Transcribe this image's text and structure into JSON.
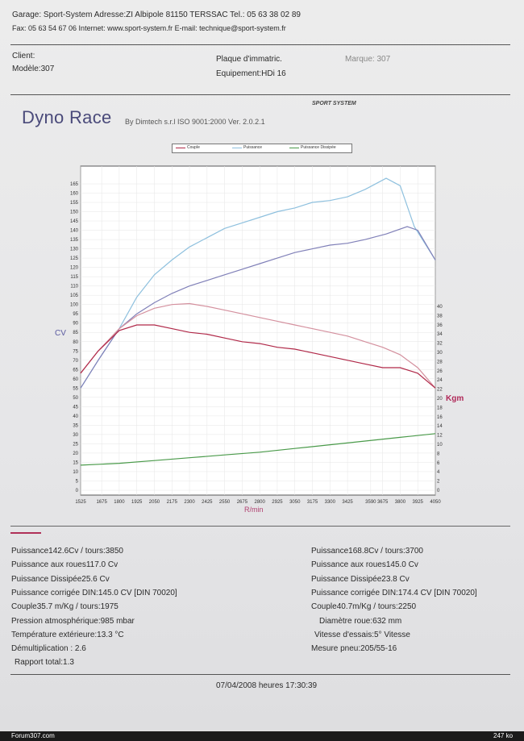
{
  "header": {
    "line1": "Garage: Sport-System   Adresse:ZI Albipole 81150 TERSSAC   Tel.: 05 63 38 02 89",
    "line2": "Fax: 05 63 54 67 06   Internet: www.sport-system.fr   E-mail: technique@sport-system.fr"
  },
  "client": {
    "client_label": "Client:",
    "modele": "Modèle:307",
    "plaque": "Plaque d'immatric.",
    "marque": "Marque: 307",
    "equipement": "Equipement:HDi 16"
  },
  "brand": {
    "title": "Dyno Race",
    "subtitle": "By Dimtech s.r.l  ISO 9001:2000  Ver. 2.0.2.1",
    "logo": "SPORT SYSTEM"
  },
  "chart_data": {
    "type": "line",
    "xlabel": "R/min",
    "ylabel_left": "CV",
    "ylabel_right": "Kgm",
    "x_ticks": [
      1525,
      1675,
      1800,
      1925,
      2050,
      2175,
      2300,
      2425,
      2550,
      2675,
      2800,
      2925,
      3050,
      3175,
      3300,
      3425,
      3590,
      3675,
      3800,
      3925,
      4050
    ],
    "xlim": [
      1525,
      4050
    ],
    "ylim_left": [
      0,
      165
    ],
    "y_left_ticks": [
      0,
      5,
      10,
      15,
      20,
      25,
      30,
      35,
      40,
      45,
      50,
      55,
      60,
      65,
      70,
      75,
      80,
      85,
      90,
      95,
      100,
      105,
      110,
      115,
      120,
      125,
      130,
      135,
      140,
      145,
      150,
      155,
      160,
      165
    ],
    "ylim_right": [
      0,
      40
    ],
    "y_right_ticks": [
      0,
      2,
      4,
      6,
      8,
      10,
      12,
      14,
      16,
      18,
      20,
      22,
      24,
      26,
      28,
      30,
      32,
      34,
      36,
      38,
      40
    ],
    "legend": [
      "Couple",
      "Puissance",
      "Puissance Dissipée"
    ],
    "series": [
      {
        "name": "Puissance",
        "run": 2,
        "axis": "left",
        "color": "#8ec0de",
        "x": [
          1525,
          1650,
          1800,
          1925,
          2050,
          2175,
          2300,
          2425,
          2550,
          2675,
          2800,
          2925,
          3050,
          3175,
          3300,
          3425,
          3550,
          3650,
          3700,
          3800,
          3900,
          4050
        ],
        "y": [
          55,
          70,
          87,
          104,
          116,
          124,
          131,
          136,
          141,
          144,
          147,
          150,
          152,
          155,
          156,
          158,
          162,
          166,
          168,
          164,
          142,
          124
        ]
      },
      {
        "name": "Puissance",
        "run": 1,
        "axis": "left",
        "color": "#8080b8",
        "x": [
          1525,
          1650,
          1800,
          1925,
          2050,
          2175,
          2300,
          2425,
          2550,
          2675,
          2800,
          2925,
          3050,
          3175,
          3300,
          3425,
          3550,
          3700,
          3850,
          3925,
          4050
        ],
        "y": [
          55,
          70,
          87,
          95,
          101,
          106,
          110,
          113,
          116,
          119,
          122,
          125,
          128,
          130,
          132,
          133,
          135,
          138,
          142,
          140,
          124
        ]
      },
      {
        "name": "Couple",
        "run": 2,
        "axis": "left",
        "color": "#d4909e",
        "x": [
          1525,
          1650,
          1800,
          1925,
          2050,
          2175,
          2300,
          2425,
          2550,
          2675,
          2800,
          2925,
          3050,
          3175,
          3300,
          3425,
          3550,
          3675,
          3800,
          3925,
          4050
        ],
        "y": [
          63,
          75,
          87,
          94,
          98,
          100,
          100.5,
          99,
          97,
          95,
          93,
          91,
          89,
          87,
          85,
          83,
          80,
          77,
          73,
          66,
          55
        ]
      },
      {
        "name": "Couple",
        "run": 1,
        "axis": "left",
        "color": "#b02848",
        "x": [
          1525,
          1650,
          1800,
          1925,
          2050,
          2175,
          2300,
          2425,
          2550,
          2675,
          2800,
          2925,
          3050,
          3175,
          3300,
          3425,
          3550,
          3675,
          3800,
          3925,
          4050
        ],
        "y": [
          63,
          75,
          86,
          89,
          89,
          87,
          85,
          84,
          82,
          80,
          79,
          77,
          76,
          74,
          72,
          70,
          68,
          66,
          66,
          63,
          55
        ]
      },
      {
        "name": "Puissance Dissipée",
        "run": 1,
        "axis": "left",
        "color": "#4a9a4a",
        "x": [
          1525,
          1800,
          2050,
          2300,
          2550,
          2800,
          3050,
          3300,
          3550,
          3800,
          4050
        ],
        "y": [
          13.5,
          14.5,
          16,
          17.5,
          19,
          20.5,
          22.5,
          24.5,
          26.5,
          28.5,
          30.5
        ]
      }
    ]
  },
  "results_left": [
    "Puissance142.6Cv / tours:3850",
    "Puissance aux roues117.0 Cv",
    "Puissance Dissipée25.6 Cv",
    "Puissance corrigée DIN:145.0 CV  [DIN 70020]",
    "Couple35.7 m/Kg / tours:1975",
    "Pression atmosphérique:985 mbar",
    "Température extérieure:13.3 °C",
    "Démultiplication : 2.6",
    "Rapport total:1.3"
  ],
  "results_right": [
    "Puissance168.8Cv / tours:3700",
    "Puissance aux roues145.0 Cv",
    "Puissance Dissipée23.8 Cv",
    "Puissance corrigée DIN:174.4 CV  [DIN 70020]",
    "Couple40.7m/Kg / tours:2250",
    "Diamètre roue:632 mm",
    "Vitesse d'essais:5° Vitesse",
    "Mesure pneu:205/55-16"
  ],
  "footer": {
    "datetime": "07/04/2008 heures  17:30:39",
    "site": "Forum307.com",
    "size": "247 ko"
  }
}
